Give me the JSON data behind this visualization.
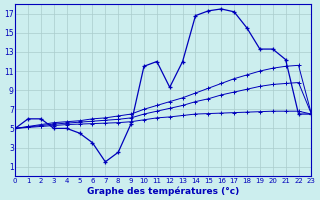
{
  "bg_color": "#cceeee",
  "line_color": "#0000bb",
  "grid_color": "#aacccc",
  "xlabel": "Graphe des températures (°c)",
  "x": [
    0,
    1,
    2,
    3,
    4,
    5,
    6,
    7,
    8,
    9,
    10,
    11,
    12,
    13,
    14,
    15,
    16,
    17,
    18,
    19,
    20,
    21,
    22,
    23
  ],
  "curve_main": [
    5.0,
    6.0,
    6.0,
    5.0,
    5.0,
    4.5,
    3.5,
    1.5,
    2.5,
    5.5,
    11.5,
    12.0,
    9.3,
    12.0,
    16.8,
    17.3,
    17.5,
    17.2,
    15.5,
    13.3,
    13.3,
    12.2,
    6.5,
    6.5
  ],
  "curve_ref1": [
    5.0,
    5.2,
    5.4,
    5.6,
    5.7,
    5.8,
    6.0,
    6.1,
    6.3,
    6.5,
    7.0,
    7.4,
    7.8,
    8.2,
    8.7,
    9.2,
    9.7,
    10.2,
    10.6,
    11.0,
    11.3,
    11.5,
    11.6,
    6.5
  ],
  "curve_ref2": [
    5.0,
    5.15,
    5.3,
    5.45,
    5.55,
    5.65,
    5.75,
    5.85,
    5.95,
    6.1,
    6.5,
    6.8,
    7.1,
    7.4,
    7.8,
    8.1,
    8.5,
    8.8,
    9.1,
    9.4,
    9.6,
    9.7,
    9.8,
    6.5
  ],
  "curve_ref3": [
    5.0,
    5.1,
    5.2,
    5.3,
    5.4,
    5.45,
    5.5,
    5.55,
    5.6,
    5.7,
    5.9,
    6.1,
    6.2,
    6.35,
    6.5,
    6.55,
    6.6,
    6.65,
    6.7,
    6.75,
    6.8,
    6.8,
    6.8,
    6.5
  ],
  "ylim": [
    0,
    18
  ],
  "xlim": [
    0,
    23
  ],
  "yticks": [
    1,
    3,
    5,
    7,
    9,
    11,
    13,
    15,
    17
  ],
  "xticks": [
    0,
    1,
    2,
    3,
    4,
    5,
    6,
    7,
    8,
    9,
    10,
    11,
    12,
    13,
    14,
    15,
    16,
    17,
    18,
    19,
    20,
    21,
    22,
    23
  ]
}
